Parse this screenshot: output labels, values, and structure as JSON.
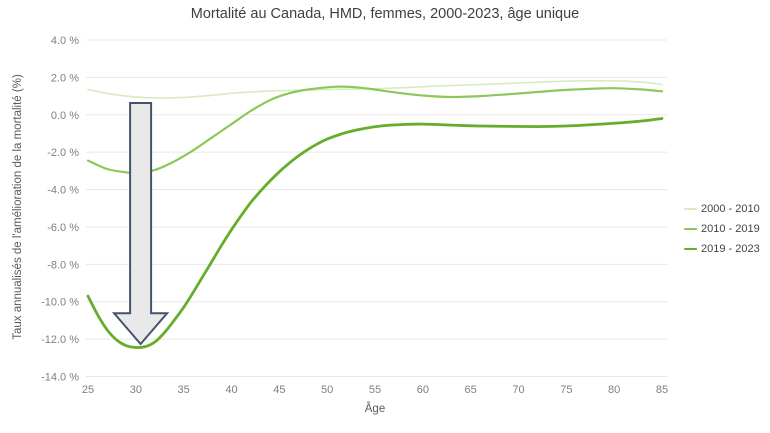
{
  "chart_data": {
    "type": "line",
    "title": "Mortalité au Canada, HMD, femmes, 2000-2023, âge unique",
    "xlabel": "Âge",
    "ylabel": "Taux annualisés de l'amélioration de la mortalité (%)",
    "x_range": [
      25,
      85
    ],
    "y_range": [
      4,
      -14
    ],
    "grid": true,
    "legend_position": "right",
    "x_ticks": [
      25,
      30,
      35,
      40,
      45,
      50,
      55,
      60,
      65,
      70,
      75,
      80,
      85
    ],
    "y_ticks": [
      {
        "label": "4.0 %",
        "value": 4
      },
      {
        "label": "2.0 %",
        "value": 2
      },
      {
        "label": "0.0 %",
        "value": 0
      },
      {
        "label": "-2.0 %",
        "value": -2
      },
      {
        "label": "-4.0 %",
        "value": -4
      },
      {
        "label": "-6.0 %",
        "value": -6
      },
      {
        "label": "-8.0 %",
        "value": -8
      },
      {
        "label": "-10.0 %",
        "value": -10
      },
      {
        "label": "-12.0 %",
        "value": -12
      },
      {
        "label": "-14.0 %",
        "value": -14
      }
    ],
    "series": [
      {
        "name": "2000 - 2010",
        "color": "#d8ebc2",
        "width": 1.6,
        "points": [
          [
            25,
            1.35
          ],
          [
            27,
            1.15
          ],
          [
            29,
            1.0
          ],
          [
            31,
            0.92
          ],
          [
            33,
            0.9
          ],
          [
            35,
            0.93
          ],
          [
            37,
            1.0
          ],
          [
            40,
            1.15
          ],
          [
            43,
            1.25
          ],
          [
            46,
            1.3
          ],
          [
            50,
            1.35
          ],
          [
            54,
            1.38
          ],
          [
            58,
            1.45
          ],
          [
            62,
            1.55
          ],
          [
            66,
            1.62
          ],
          [
            70,
            1.7
          ],
          [
            74,
            1.78
          ],
          [
            78,
            1.82
          ],
          [
            81,
            1.8
          ],
          [
            83,
            1.74
          ],
          [
            85,
            1.62
          ]
        ]
      },
      {
        "name": "2010 - 2019",
        "color": "#8cc758",
        "width": 2.2,
        "points": [
          [
            25,
            -2.45
          ],
          [
            27,
            -2.9
          ],
          [
            29,
            -3.08
          ],
          [
            30,
            -3.1
          ],
          [
            32,
            -2.95
          ],
          [
            34,
            -2.5
          ],
          [
            36,
            -1.9
          ],
          [
            38,
            -1.2
          ],
          [
            40,
            -0.5
          ],
          [
            42,
            0.2
          ],
          [
            44,
            0.78
          ],
          [
            46,
            1.15
          ],
          [
            48,
            1.35
          ],
          [
            51,
            1.5
          ],
          [
            53,
            1.47
          ],
          [
            55,
            1.35
          ],
          [
            57,
            1.2
          ],
          [
            60,
            1.03
          ],
          [
            63,
            0.95
          ],
          [
            66,
            1.0
          ],
          [
            69,
            1.1
          ],
          [
            72,
            1.22
          ],
          [
            75,
            1.33
          ],
          [
            78,
            1.4
          ],
          [
            80,
            1.42
          ],
          [
            83,
            1.35
          ],
          [
            85,
            1.25
          ]
        ]
      },
      {
        "name": "2019 - 2023",
        "color": "#66ad2b",
        "width": 2.8,
        "points": [
          [
            25,
            -9.7
          ],
          [
            26,
            -10.7
          ],
          [
            27,
            -11.5
          ],
          [
            28,
            -12.05
          ],
          [
            29,
            -12.35
          ],
          [
            30,
            -12.45
          ],
          [
            31,
            -12.4
          ],
          [
            32,
            -12.15
          ],
          [
            33,
            -11.65
          ],
          [
            34,
            -11.0
          ],
          [
            35,
            -10.3
          ],
          [
            36,
            -9.5
          ],
          [
            37,
            -8.65
          ],
          [
            38,
            -7.8
          ],
          [
            39,
            -6.95
          ],
          [
            40,
            -6.15
          ],
          [
            41,
            -5.4
          ],
          [
            42,
            -4.7
          ],
          [
            43,
            -4.1
          ],
          [
            44,
            -3.55
          ],
          [
            45,
            -3.05
          ],
          [
            46,
            -2.6
          ],
          [
            47,
            -2.2
          ],
          [
            48,
            -1.85
          ],
          [
            49,
            -1.55
          ],
          [
            50,
            -1.3
          ],
          [
            52,
            -0.95
          ],
          [
            54,
            -0.72
          ],
          [
            56,
            -0.58
          ],
          [
            58,
            -0.52
          ],
          [
            60,
            -0.5
          ],
          [
            63,
            -0.55
          ],
          [
            66,
            -0.6
          ],
          [
            69,
            -0.62
          ],
          [
            72,
            -0.63
          ],
          [
            75,
            -0.6
          ],
          [
            78,
            -0.52
          ],
          [
            81,
            -0.42
          ],
          [
            83,
            -0.33
          ],
          [
            85,
            -0.2
          ]
        ]
      }
    ],
    "annotation": {
      "name": "down-arrow",
      "age": 30.5,
      "value_top": 0.63,
      "value_head_top": -10.62,
      "value_tip": -12.26,
      "fill": "#e9e9e9",
      "stroke": "#44546a"
    },
    "colors": {
      "gridline": "#e8e8e8",
      "tick_text": "#7f7f7f",
      "title_text": "#3f3f3f",
      "axis_title_text": "#595959"
    }
  }
}
